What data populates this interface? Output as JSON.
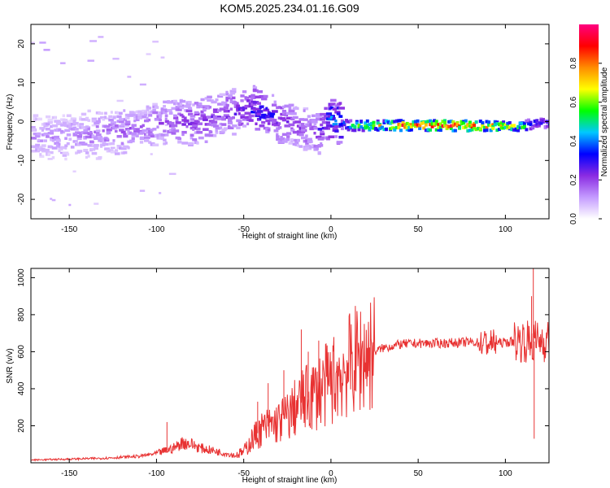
{
  "figure": {
    "title": "KOM5.2025.234.01.16.G09"
  },
  "chart_data": [
    {
      "type": "heatmap",
      "id": "spectrogram",
      "title": "KOM5.2025.234.01.16.G09",
      "xlabel": "Height of straight line (km)",
      "ylabel": "Frequency (Hz)",
      "xlim": [
        -172,
        125
      ],
      "ylim": [
        -25,
        25
      ],
      "x_ticks": [
        -150,
        -100,
        -50,
        0,
        50,
        100
      ],
      "y_ticks": [
        -20,
        -10,
        0,
        10,
        20
      ],
      "colorbar": {
        "label": "Normalized spectral amplitude",
        "range": [
          0,
          1
        ],
        "ticks": [
          0.0,
          0.2,
          0.4,
          0.6,
          0.8
        ],
        "colors": [
          "#ffffff",
          "#c49bff",
          "#8a2be2",
          "#0000ff",
          "#00c8ff",
          "#00ff00",
          "#ffff00",
          "#ff8c00",
          "#ff0000",
          "#ff0080"
        ]
      },
      "ridge": [
        {
          "x": -150,
          "f": -4.0,
          "a": 0.12
        },
        {
          "x": -130,
          "f": -3.0,
          "a": 0.15
        },
        {
          "x": -110,
          "f": -1.5,
          "a": 0.16
        },
        {
          "x": -95,
          "f": -0.5,
          "a": 0.18
        },
        {
          "x": -80,
          "f": 0.0,
          "a": 0.2
        },
        {
          "x": -65,
          "f": 1.5,
          "a": 0.2
        },
        {
          "x": -50,
          "f": 3.0,
          "a": 0.25
        },
        {
          "x": -40,
          "f": 2.5,
          "a": 0.3
        },
        {
          "x": -30,
          "f": 0.5,
          "a": 0.22
        },
        {
          "x": -20,
          "f": -1.5,
          "a": 0.18
        },
        {
          "x": -10,
          "f": -3.0,
          "a": 0.2
        },
        {
          "x": -5,
          "f": -1.0,
          "a": 0.25
        },
        {
          "x": 0,
          "f": 1.0,
          "a": 0.4
        },
        {
          "x": 5,
          "f": -0.5,
          "a": 0.3
        },
        {
          "x": 10,
          "f": -1.0,
          "a": 0.5
        },
        {
          "x": 30,
          "f": -1.0,
          "a": 0.7
        },
        {
          "x": 60,
          "f": -1.0,
          "a": 0.85
        },
        {
          "x": 90,
          "f": -1.2,
          "a": 0.8
        },
        {
          "x": 110,
          "f": -1.2,
          "a": 0.5
        },
        {
          "x": 118,
          "f": 0.0,
          "a": 0.3
        },
        {
          "x": 125,
          "f": -0.5,
          "a": 0.3
        }
      ]
    },
    {
      "type": "line",
      "id": "snr",
      "xlabel": "Height of straight line (km)",
      "ylabel": "SNR (v/v)",
      "xlim": [
        -172,
        125
      ],
      "ylim": [
        0,
        1050
      ],
      "x_ticks": [
        -150,
        -100,
        -50,
        0,
        50,
        100
      ],
      "y_ticks": [
        200,
        400,
        600,
        800,
        1000
      ],
      "series": [
        {
          "name": "SNR",
          "color": "#e83232",
          "x": [
            -172,
            -150,
            -130,
            -110,
            -100,
            -90,
            -85,
            -80,
            -75,
            -70,
            -65,
            -60,
            -55,
            -50,
            -45,
            -40,
            -35,
            -30,
            -25,
            -20,
            -15,
            -10,
            -5,
            0,
            5,
            10,
            15,
            20,
            25,
            30,
            40,
            50,
            60,
            70,
            80,
            90,
            100,
            110,
            115,
            118,
            120,
            125
          ],
          "y": [
            15,
            20,
            25,
            35,
            50,
            80,
            110,
            100,
            80,
            70,
            60,
            50,
            40,
            60,
            130,
            180,
            200,
            220,
            250,
            300,
            340,
            370,
            400,
            440,
            480,
            520,
            560,
            580,
            600,
            620,
            640,
            645,
            645,
            648,
            652,
            645,
            650,
            660,
            650,
            660,
            665,
            660
          ]
        }
      ],
      "spikes": [
        {
          "x": -94,
          "y": 220
        },
        {
          "x": -42,
          "y": 330
        },
        {
          "x": -36,
          "y": 430
        },
        {
          "x": -27,
          "y": 500
        },
        {
          "x": -17,
          "y": 720
        },
        {
          "x": -13,
          "y": 600
        },
        {
          "x": -7,
          "y": 660
        },
        {
          "x": 89,
          "y": 700
        },
        {
          "x": 113,
          "y": 740
        },
        {
          "x": 115,
          "y": 900
        },
        {
          "x": 116,
          "y": 1050
        },
        {
          "x": 116.5,
          "y": 130
        }
      ]
    }
  ]
}
